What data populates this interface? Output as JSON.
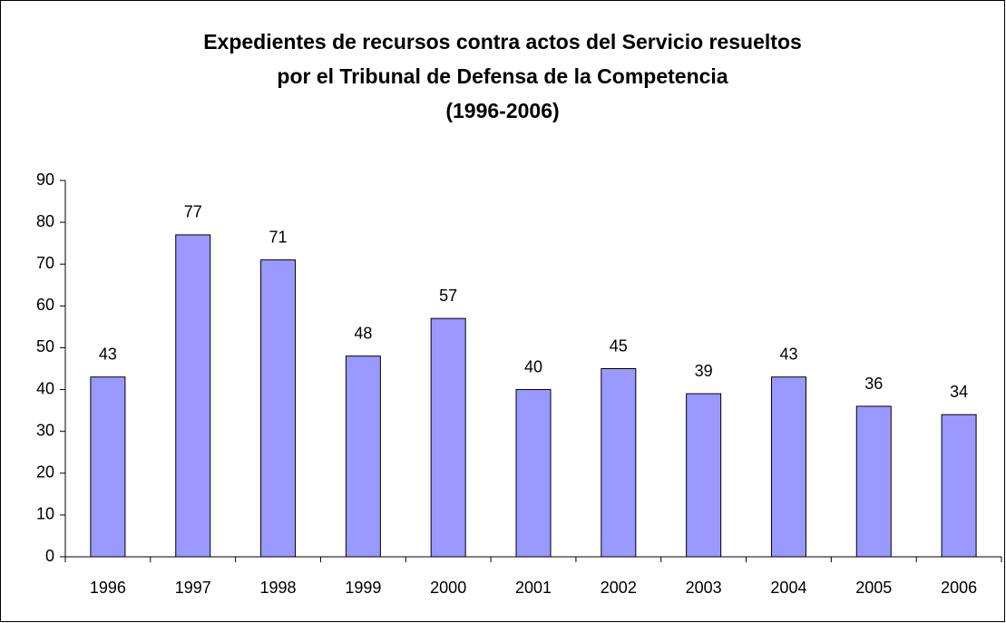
{
  "chart_data": {
    "type": "bar",
    "title": [
      "Expedientes de recursos contra actos del Servicio resueltos",
      "por el Tribunal de Defensa de la Competencia",
      "(1996-2006)"
    ],
    "categories": [
      "1996",
      "1997",
      "1998",
      "1999",
      "2000",
      "2001",
      "2002",
      "2003",
      "2004",
      "2005",
      "2006"
    ],
    "values": [
      43,
      77,
      71,
      48,
      57,
      40,
      45,
      39,
      43,
      36,
      34
    ],
    "color": "#9999ff",
    "ylim": [
      0,
      90
    ],
    "yticks": [
      0,
      10,
      20,
      30,
      40,
      50,
      60,
      70,
      80,
      90
    ],
    "grid": false
  }
}
